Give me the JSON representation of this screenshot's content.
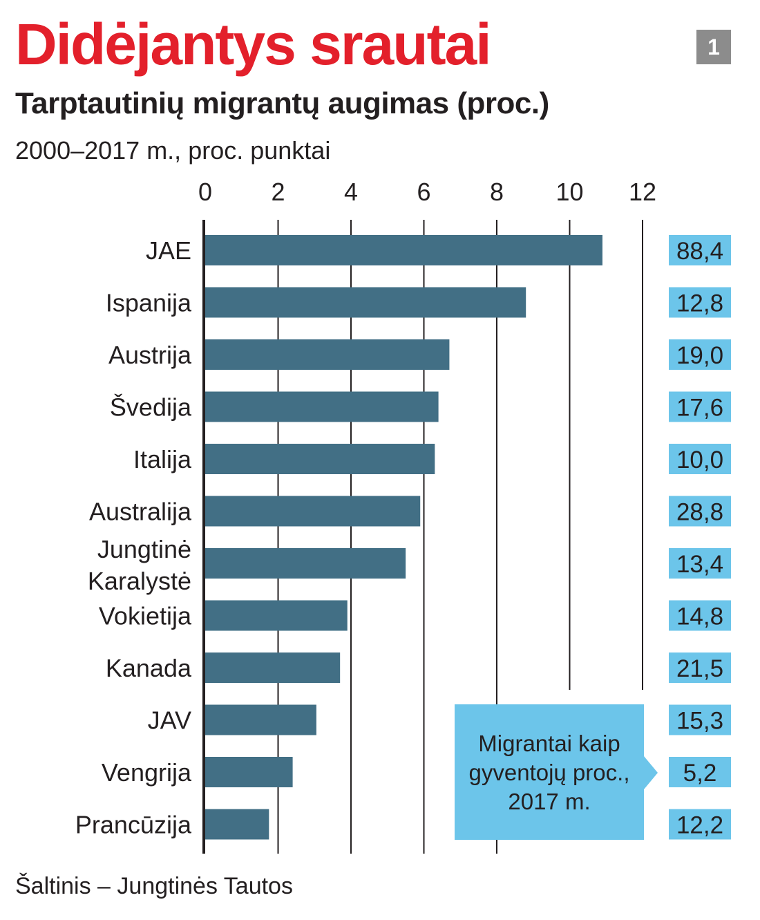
{
  "title": "Didėjantys srautai",
  "badge": "1",
  "subtitle": "Tarptautinių migrantų augimas (proc.)",
  "unit_note": "2000–2017 m., proc. punktai",
  "source": "Šaltinis – Jungtinės Tautos",
  "callout": "Migrantai kaip gyventojų proc., 2017 m.",
  "colors": {
    "title": "#e3202b",
    "bar": "#426f85",
    "value_box": "#6cc5ea",
    "badge": "#8c8c8c"
  },
  "chart_data": {
    "type": "bar",
    "orientation": "horizontal",
    "title": "Tarptautinių migrantų augimas (proc.)",
    "xlabel": "2000–2017 m., proc. punktai",
    "ylabel": "",
    "xlim": [
      0,
      12
    ],
    "ticks": [
      "0",
      "2",
      "4",
      "6",
      "8",
      "10",
      "12"
    ],
    "grid": true,
    "categories": [
      "JAE",
      "Ispanija",
      "Austrija",
      "Švedija",
      "Italija",
      "Australija",
      "Jungtinė Karalystė",
      "Vokietija",
      "Kanada",
      "JAV",
      "Vengrija",
      "Prancūzija"
    ],
    "values": [
      10.9,
      8.8,
      6.7,
      6.4,
      6.3,
      5.9,
      5.5,
      3.9,
      3.7,
      3.05,
      2.4,
      1.75
    ],
    "side_values": [
      "88,4",
      "12,8",
      "19,0",
      "17,6",
      "10,0",
      "28,8",
      "13,4",
      "14,8",
      "21,5",
      "15,3",
      "5,2",
      "12,2"
    ]
  }
}
